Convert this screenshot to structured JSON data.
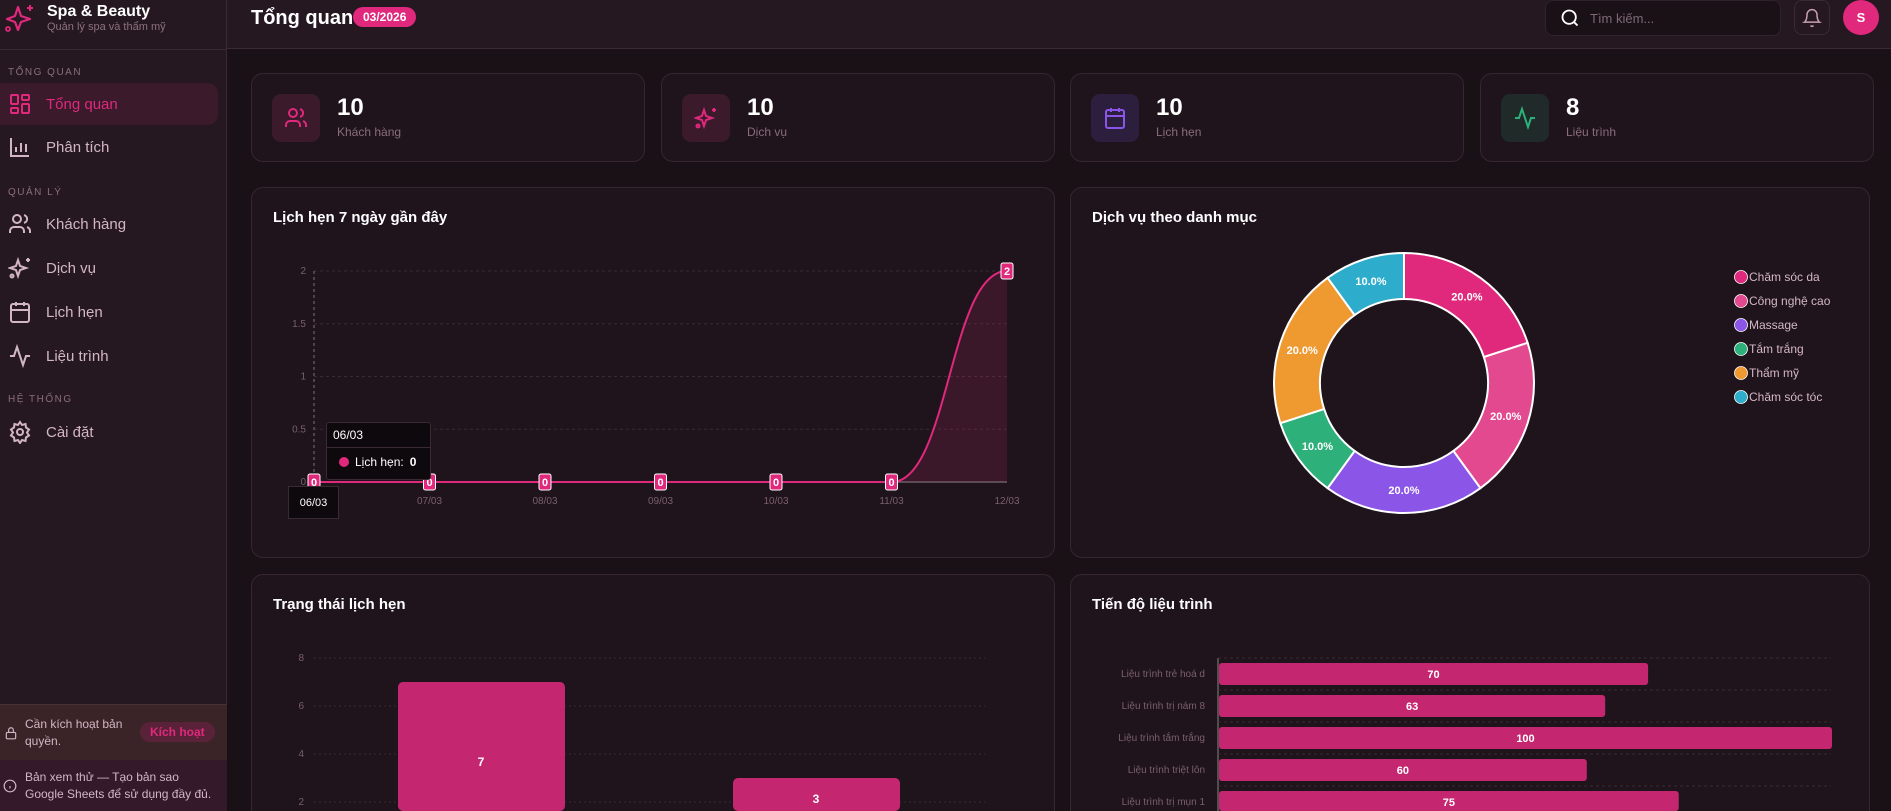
{
  "app": {
    "name": "Spa & Beauty",
    "subtitle": "Quản lý spa và thẩm mỹ"
  },
  "sidebar": {
    "sections": [
      "TỔNG QUAN",
      "QUẢN LÝ",
      "HỆ THỐNG"
    ],
    "items": [
      {
        "label": "Tổng quan",
        "icon": "grid-icon"
      },
      {
        "label": "Phân tích",
        "icon": "bar-chart-icon"
      },
      {
        "label": "Khách hàng",
        "icon": "users-icon"
      },
      {
        "label": "Dịch vụ",
        "icon": "sparkles-icon"
      },
      {
        "label": "Lịch hẹn",
        "icon": "calendar-icon"
      },
      {
        "label": "Liệu trình",
        "icon": "activity-icon"
      },
      {
        "label": "Cài đặt",
        "icon": "gear-icon"
      }
    ],
    "activation": {
      "text": "Cần kích hoạt bản quyền.",
      "button": "Kích hoạt"
    },
    "trial_note": "Bản xem thử — Tạo bản sao Google Sheets để sử dụng đầy đủ."
  },
  "header": {
    "title": "Tổng quan",
    "period": "03/2026",
    "search_placeholder": "Tìm kiếm...",
    "avatar": "S"
  },
  "stats": [
    {
      "value": "10",
      "label": "Khách hàng"
    },
    {
      "value": "10",
      "label": "Dịch vụ"
    },
    {
      "value": "10",
      "label": "Lịch hẹn"
    },
    {
      "value": "8",
      "label": "Liệu trình"
    }
  ],
  "colors": {
    "accent": "#e0287d"
  },
  "chart_data": [
    {
      "type": "line",
      "title": "Lịch hẹn 7 ngày gần đây",
      "categories": [
        "06/03",
        "07/03",
        "08/03",
        "09/03",
        "10/03",
        "11/03",
        "12/03"
      ],
      "series": [
        {
          "name": "Lịch hẹn",
          "values": [
            0,
            0,
            0,
            0,
            0,
            0,
            2
          ]
        }
      ],
      "yticks": [
        "0",
        "0.5",
        "1",
        "1.5",
        "2"
      ],
      "ylim": [
        0,
        2
      ],
      "tooltip": {
        "title": "06/03",
        "label": "Lịch hẹn:",
        "value": "0"
      }
    },
    {
      "type": "pie",
      "title": "Dịch vụ theo danh mục",
      "legend": "right",
      "slices": [
        {
          "label": "Chăm sóc da",
          "value": 20,
          "text": "20.0%",
          "color": "#e0287d"
        },
        {
          "label": "Công nghệ cao",
          "value": 20,
          "text": "20.0%",
          "color": "#e3498f"
        },
        {
          "label": "Massage",
          "value": 20,
          "text": "20.0%",
          "color": "#8b55e8"
        },
        {
          "label": "Tắm trắng",
          "value": 10,
          "text": "10.0%",
          "color": "#2db07a"
        },
        {
          "label": "Thẩm mỹ",
          "value": 20,
          "text": "20.0%",
          "color": "#ee9a30"
        },
        {
          "label": "Chăm sóc tóc",
          "value": 10,
          "text": "10.0%",
          "color": "#2eaccc"
        }
      ]
    },
    {
      "type": "bar",
      "title": "Trạng thái lịch hẹn",
      "values": [
        7,
        3
      ],
      "value_labels": [
        "7",
        "3"
      ],
      "yticks": [
        "2",
        "4",
        "6",
        "8"
      ],
      "ylim": [
        0,
        8
      ]
    },
    {
      "type": "bar",
      "orientation": "horizontal",
      "title": "Tiến độ liệu trình",
      "categories": [
        "Liệu trình trẻ hoá d",
        "Liệu trình trị nám 8",
        "Liệu trình tắm trắng",
        "Liệu trình triệt lôn",
        "Liệu trình trị mụn 1"
      ],
      "values": [
        70,
        63,
        100,
        60,
        75
      ],
      "value_labels": [
        "70",
        "63",
        "100",
        "60",
        "75"
      ],
      "xlim": [
        0,
        100
      ]
    }
  ]
}
